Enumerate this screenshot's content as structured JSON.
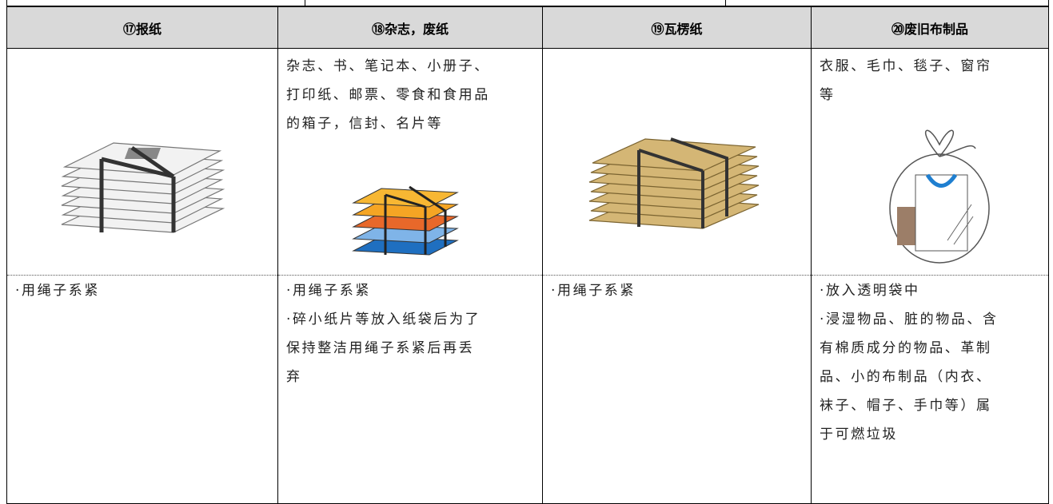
{
  "headers": [
    "⑰报纸",
    "⑱杂志，废纸",
    "⑲瓦楞纸",
    "⑳废旧布制品"
  ],
  "descriptions": {
    "1": [
      "杂志、书、笔记本、小册子、",
      "打印纸、邮票、零食和食用品",
      "的箱子，信封、名片等"
    ],
    "3": [
      "衣服、毛巾、毯子、窗帘",
      "等"
    ]
  },
  "instructions": [
    [
      "·用绳子系紧"
    ],
    [
      "·用绳子系紧",
      "·碎小纸片等放入纸袋后为了",
      "保持整洁用绳子系紧后再丢",
      "弃"
    ],
    [
      "·用绳子系紧"
    ],
    [
      "·放入透明袋中",
      "·浸湿物品、脏的物品、含",
      "有棉质成分的物品、革制",
      "品、小的布制品（内衣、",
      "袜子、帽子、手巾等）属",
      "于可燃垃圾"
    ]
  ]
}
